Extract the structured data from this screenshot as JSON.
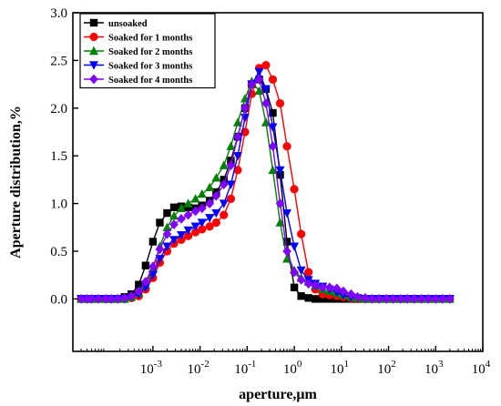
{
  "chart_data": {
    "type": "line",
    "xlabel": "aperture,μm",
    "ylabel": "Aperture distribution,%",
    "xscale": "log",
    "xlim": [
      2e-05,
      10000
    ],
    "ylim": [
      -0.55,
      3.0
    ],
    "x_ticks": [
      {
        "value": 0.001,
        "label": "-3"
      },
      {
        "value": 0.01,
        "label": "-2"
      },
      {
        "value": 0.1,
        "label": "-1"
      },
      {
        "value": 1,
        "label": "0"
      },
      {
        "value": 10,
        "label": "1"
      },
      {
        "value": 100,
        "label": "2"
      },
      {
        "value": 1000,
        "label": "3"
      },
      {
        "value": 10000,
        "label": "4"
      }
    ],
    "x_tick_base": "10",
    "y_ticks": [
      "0.0",
      "0.5",
      "1.0",
      "1.5",
      "2.0",
      "2.5",
      "3.0"
    ],
    "legend_position": "top-left",
    "series": [
      {
        "name": "unsoaked",
        "color": "#000000",
        "marker": "square",
        "x": [
          3e-05,
          4e-05,
          5e-05,
          7e-05,
          0.0001,
          0.00013,
          0.00018,
          0.00025,
          0.00035,
          0.0005,
          0.0007,
          0.001,
          0.0014,
          0.002,
          0.0028,
          0.004,
          0.0056,
          0.008,
          0.011,
          0.016,
          0.022,
          0.032,
          0.045,
          0.063,
          0.09,
          0.125,
          0.18,
          0.25,
          0.35,
          0.5,
          0.7,
          1.0,
          1.4,
          2,
          2.8,
          4,
          5.6,
          8,
          11,
          16,
          22,
          32,
          45,
          63,
          90,
          125,
          180,
          250,
          350,
          500,
          700,
          1000,
          1400,
          2000
        ],
        "y": [
          0,
          0,
          0,
          0,
          0,
          0,
          0,
          0.02,
          0.05,
          0.15,
          0.35,
          0.6,
          0.8,
          0.9,
          0.96,
          0.97,
          0.96,
          0.95,
          0.98,
          1.03,
          1.12,
          1.25,
          1.45,
          1.7,
          2.0,
          2.25,
          2.3,
          2.2,
          1.95,
          1.3,
          0.6,
          0.12,
          0.03,
          0.01,
          0,
          0,
          0,
          0,
          0,
          0,
          0,
          0,
          0,
          0,
          0,
          0,
          0,
          0,
          0,
          0,
          0,
          0,
          0,
          0
        ]
      },
      {
        "name": "Soaked for 1 months",
        "color": "#ff0000",
        "marker": "circle",
        "x": [
          3e-05,
          4e-05,
          5e-05,
          7e-05,
          0.0001,
          0.00013,
          0.00018,
          0.00025,
          0.00035,
          0.0005,
          0.0007,
          0.001,
          0.0014,
          0.002,
          0.0028,
          0.004,
          0.0056,
          0.008,
          0.011,
          0.016,
          0.022,
          0.032,
          0.045,
          0.063,
          0.09,
          0.125,
          0.18,
          0.25,
          0.35,
          0.5,
          0.7,
          1.0,
          1.4,
          2,
          2.8,
          4,
          5.6,
          8,
          11,
          16,
          22,
          32,
          45,
          63,
          90,
          125,
          180,
          250,
          350,
          500,
          700,
          1000,
          1400,
          2000
        ],
        "y": [
          0,
          0,
          0,
          0,
          0,
          0,
          0,
          0,
          0.01,
          0.03,
          0.1,
          0.22,
          0.38,
          0.5,
          0.58,
          0.62,
          0.66,
          0.7,
          0.73,
          0.76,
          0.8,
          0.88,
          1.05,
          1.35,
          1.75,
          2.15,
          2.42,
          2.45,
          2.3,
          2.05,
          1.6,
          1.15,
          0.68,
          0.28,
          0.1,
          0.05,
          0.04,
          0.03,
          0.02,
          0.01,
          0,
          0,
          0,
          0,
          0,
          0,
          0,
          0,
          0,
          0,
          0,
          0,
          0,
          0
        ]
      },
      {
        "name": "Soaked for 2 months",
        "color": "#008000",
        "marker": "triangle-up",
        "x": [
          3e-05,
          4e-05,
          5e-05,
          7e-05,
          0.0001,
          0.00013,
          0.00018,
          0.00025,
          0.00035,
          0.0005,
          0.0007,
          0.001,
          0.0014,
          0.002,
          0.0028,
          0.004,
          0.0056,
          0.008,
          0.011,
          0.016,
          0.022,
          0.032,
          0.045,
          0.063,
          0.09,
          0.125,
          0.18,
          0.25,
          0.35,
          0.5,
          0.7,
          1.0,
          1.4,
          2,
          2.8,
          4,
          5.6,
          8,
          11,
          16,
          22,
          32,
          45,
          63,
          90,
          125,
          180,
          250,
          350,
          500,
          700,
          1000,
          1400,
          2000
        ],
        "y": [
          0,
          0,
          0,
          0,
          0,
          0,
          0,
          0,
          0.02,
          0.06,
          0.15,
          0.32,
          0.55,
          0.75,
          0.87,
          0.95,
          1.0,
          1.05,
          1.1,
          1.17,
          1.27,
          1.4,
          1.6,
          1.85,
          2.1,
          2.28,
          2.18,
          1.85,
          1.35,
          0.8,
          0.42,
          0.3,
          0.22,
          0.18,
          0.14,
          0.1,
          0.08,
          0.06,
          0.04,
          0.02,
          0.01,
          0,
          0,
          0,
          0,
          0,
          0,
          0,
          0,
          0,
          0,
          0,
          0,
          0
        ]
      },
      {
        "name": "Soaked for 3 months",
        "color": "#0000ff",
        "marker": "triangle-down",
        "x": [
          3e-05,
          4e-05,
          5e-05,
          7e-05,
          0.0001,
          0.00013,
          0.00018,
          0.00025,
          0.00035,
          0.0005,
          0.0007,
          0.001,
          0.0014,
          0.002,
          0.0028,
          0.004,
          0.0056,
          0.008,
          0.011,
          0.016,
          0.022,
          0.032,
          0.045,
          0.063,
          0.09,
          0.125,
          0.18,
          0.25,
          0.35,
          0.5,
          0.7,
          1.0,
          1.4,
          2,
          2.8,
          4,
          5.6,
          8,
          11,
          16,
          22,
          32,
          45,
          63,
          90,
          125,
          180,
          250,
          350,
          500,
          700,
          1000,
          1400,
          2000
        ],
        "y": [
          0,
          0,
          0,
          0,
          0,
          0,
          0,
          0,
          0.02,
          0.05,
          0.12,
          0.25,
          0.42,
          0.55,
          0.62,
          0.67,
          0.72,
          0.76,
          0.8,
          0.85,
          0.9,
          1.0,
          1.2,
          1.5,
          1.9,
          2.25,
          2.38,
          2.2,
          1.8,
          1.35,
          0.9,
          0.55,
          0.3,
          0.2,
          0.16,
          0.13,
          0.1,
          0.07,
          0.04,
          0.02,
          0.01,
          0,
          0,
          0,
          0,
          0,
          0,
          0,
          0,
          0,
          0,
          0,
          0,
          0
        ]
      },
      {
        "name": "Soaked for 4 months",
        "color": "#8000ff",
        "marker": "diamond",
        "x": [
          3e-05,
          4e-05,
          5e-05,
          7e-05,
          0.0001,
          0.00013,
          0.00018,
          0.00025,
          0.00035,
          0.0005,
          0.0007,
          0.001,
          0.0014,
          0.002,
          0.0028,
          0.004,
          0.0056,
          0.008,
          0.011,
          0.016,
          0.022,
          0.032,
          0.045,
          0.063,
          0.09,
          0.125,
          0.18,
          0.25,
          0.35,
          0.5,
          0.7,
          1.0,
          1.4,
          2,
          2.8,
          4,
          5.6,
          8,
          11,
          16,
          22,
          32,
          45,
          63,
          90,
          125,
          180,
          250,
          350,
          500,
          700,
          1000,
          1400,
          2000
        ],
        "y": [
          0,
          0,
          0,
          0,
          0,
          0,
          0,
          0.01,
          0.03,
          0.08,
          0.18,
          0.34,
          0.52,
          0.68,
          0.78,
          0.84,
          0.88,
          0.92,
          0.95,
          1.0,
          1.08,
          1.2,
          1.4,
          1.7,
          2.0,
          2.25,
          2.3,
          2.05,
          1.6,
          1.0,
          0.5,
          0.28,
          0.2,
          0.16,
          0.14,
          0.12,
          0.12,
          0.11,
          0.08,
          0.05,
          0.02,
          0.01,
          0,
          0,
          0,
          0,
          0,
          0,
          0,
          0,
          0,
          0,
          0,
          0
        ]
      }
    ]
  }
}
